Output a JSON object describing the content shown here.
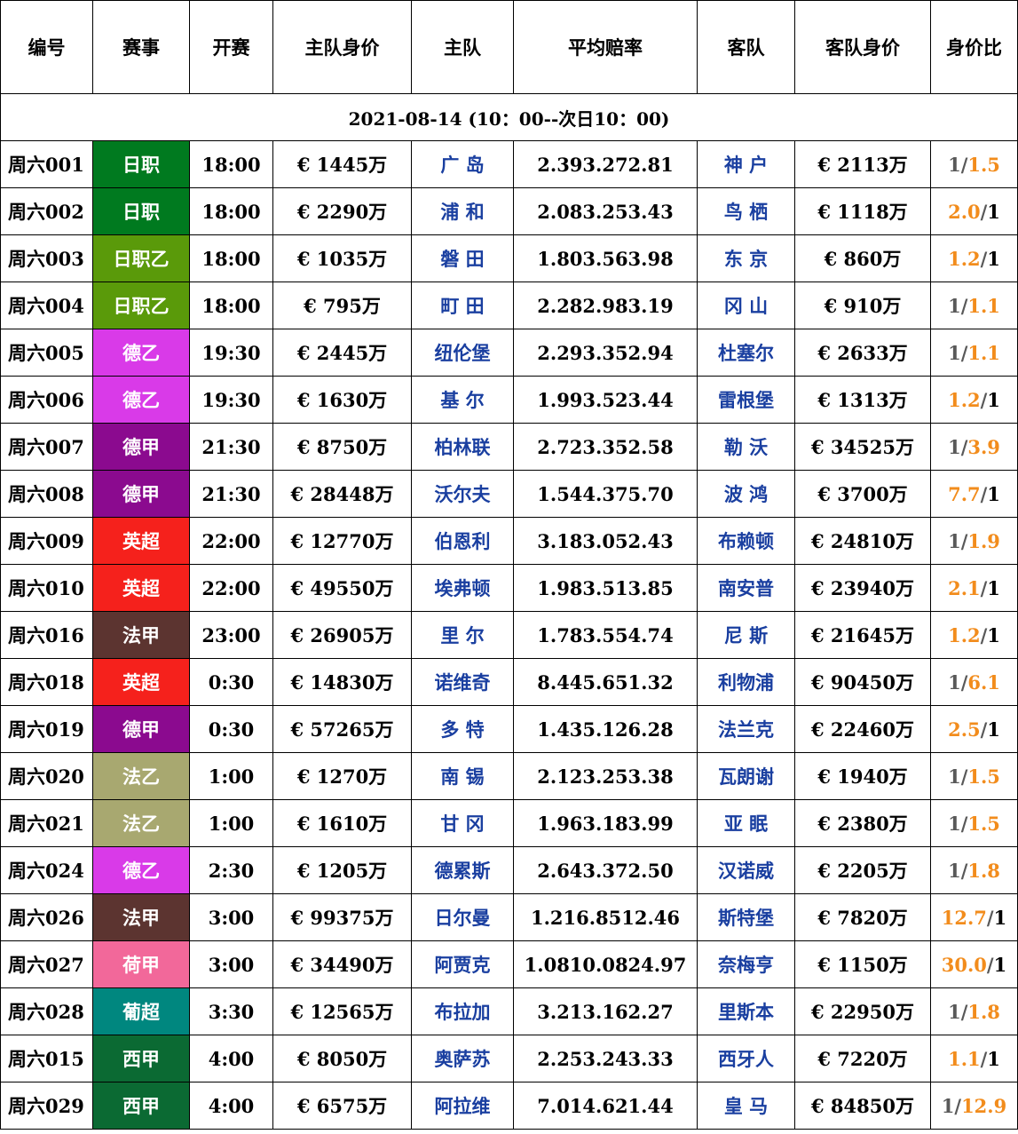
{
  "table": {
    "headers": [
      "编号",
      "赛事",
      "开赛",
      "主队身价",
      "主队",
      "平均赔率",
      "客队",
      "客队身价",
      "身价比"
    ],
    "date_label": "2021-08-14 (10：00--次日10：00)",
    "league_colors": {
      "日职": "#007a1f",
      "日职乙": "#5a9a0a",
      "德乙": "#d93ae8",
      "德甲": "#8b0a8f",
      "英超": "#f5211c",
      "法甲": "#5c3430",
      "法乙": "#a8a870",
      "荷甲": "#f2689a",
      "葡超": "#00877f",
      "西甲": "#0b6a33"
    },
    "rows": [
      {
        "id": "周六001",
        "league": "日职",
        "time": "18:00",
        "home_value": "€ 1445万",
        "home": "广 岛",
        "odds": "2.393.272.81",
        "away": "神 户",
        "away_value": "€ 2113万",
        "ratio_left": "1",
        "ratio_right": "1.5",
        "ratio_high": "right"
      },
      {
        "id": "周六002",
        "league": "日职",
        "time": "18:00",
        "home_value": "€ 2290万",
        "home": "浦 和",
        "odds": "2.083.253.43",
        "away": "鸟 栖",
        "away_value": "€ 1118万",
        "ratio_left": "2.0",
        "ratio_right": "1",
        "ratio_high": "left"
      },
      {
        "id": "周六003",
        "league": "日职乙",
        "time": "18:00",
        "home_value": "€ 1035万",
        "home": "磐 田",
        "odds": "1.803.563.98",
        "away": "东 京",
        "away_value": "€ 860万",
        "ratio_left": "1.2",
        "ratio_right": "1",
        "ratio_high": "left"
      },
      {
        "id": "周六004",
        "league": "日职乙",
        "time": "18:00",
        "home_value": "€ 795万",
        "home": "町 田",
        "odds": "2.282.983.19",
        "away": "冈 山",
        "away_value": "€ 910万",
        "ratio_left": "1",
        "ratio_right": "1.1",
        "ratio_high": "right"
      },
      {
        "id": "周六005",
        "league": "德乙",
        "time": "19:30",
        "home_value": "€ 2445万",
        "home": "纽伦堡",
        "odds": "2.293.352.94",
        "away": "杜塞尔",
        "away_value": "€ 2633万",
        "ratio_left": "1",
        "ratio_right": "1.1",
        "ratio_high": "right"
      },
      {
        "id": "周六006",
        "league": "德乙",
        "time": "19:30",
        "home_value": "€ 1630万",
        "home": "基 尔",
        "odds": "1.993.523.44",
        "away": "雷根堡",
        "away_value": "€ 1313万",
        "ratio_left": "1.2",
        "ratio_right": "1",
        "ratio_high": "left"
      },
      {
        "id": "周六007",
        "league": "德甲",
        "time": "21:30",
        "home_value": "€ 8750万",
        "home": "柏林联",
        "odds": "2.723.352.58",
        "away": "勒 沃",
        "away_value": "€ 34525万",
        "ratio_left": "1",
        "ratio_right": "3.9",
        "ratio_high": "right"
      },
      {
        "id": "周六008",
        "league": "德甲",
        "time": "21:30",
        "home_value": "€ 28448万",
        "home": "沃尔夫",
        "odds": "1.544.375.70",
        "away": "波 鸿",
        "away_value": "€ 3700万",
        "ratio_left": "7.7",
        "ratio_right": "1",
        "ratio_high": "left"
      },
      {
        "id": "周六009",
        "league": "英超",
        "time": "22:00",
        "home_value": "€ 12770万",
        "home": "伯恩利",
        "odds": "3.183.052.43",
        "away": "布赖顿",
        "away_value": "€ 24810万",
        "ratio_left": "1",
        "ratio_right": "1.9",
        "ratio_high": "right"
      },
      {
        "id": "周六010",
        "league": "英超",
        "time": "22:00",
        "home_value": "€ 49550万",
        "home": "埃弗顿",
        "odds": "1.983.513.85",
        "away": "南安普",
        "away_value": "€ 23940万",
        "ratio_left": "2.1",
        "ratio_right": "1",
        "ratio_high": "left"
      },
      {
        "id": "周六016",
        "league": "法甲",
        "time": "23:00",
        "home_value": "€ 26905万",
        "home": "里 尔",
        "odds": "1.783.554.74",
        "away": "尼 斯",
        "away_value": "€ 21645万",
        "ratio_left": "1.2",
        "ratio_right": "1",
        "ratio_high": "left"
      },
      {
        "id": "周六018",
        "league": "英超",
        "time": "0:30",
        "home_value": "€ 14830万",
        "home": "诺维奇",
        "odds": "8.445.651.32",
        "away": "利物浦",
        "away_value": "€ 90450万",
        "ratio_left": "1",
        "ratio_right": "6.1",
        "ratio_high": "right"
      },
      {
        "id": "周六019",
        "league": "德甲",
        "time": "0:30",
        "home_value": "€ 57265万",
        "home": "多 特",
        "odds": "1.435.126.28",
        "away": "法兰克",
        "away_value": "€ 22460万",
        "ratio_left": "2.5",
        "ratio_right": "1",
        "ratio_high": "left"
      },
      {
        "id": "周六020",
        "league": "法乙",
        "time": "1:00",
        "home_value": "€ 1270万",
        "home": "南 锡",
        "odds": "2.123.253.38",
        "away": "瓦朗谢",
        "away_value": "€ 1940万",
        "ratio_left": "1",
        "ratio_right": "1.5",
        "ratio_high": "right"
      },
      {
        "id": "周六021",
        "league": "法乙",
        "time": "1:00",
        "home_value": "€ 1610万",
        "home": "甘 冈",
        "odds": "1.963.183.99",
        "away": "亚 眠",
        "away_value": "€ 2380万",
        "ratio_left": "1",
        "ratio_right": "1.5",
        "ratio_high": "right"
      },
      {
        "id": "周六024",
        "league": "德乙",
        "time": "2:30",
        "home_value": "€ 1205万",
        "home": "德累斯",
        "odds": "2.643.372.50",
        "away": "汉诺威",
        "away_value": "€ 2205万",
        "ratio_left": "1",
        "ratio_right": "1.8",
        "ratio_high": "right"
      },
      {
        "id": "周六026",
        "league": "法甲",
        "time": "3:00",
        "home_value": "€ 99375万",
        "home": "日尔曼",
        "odds": "1.216.8512.46",
        "away": "斯特堡",
        "away_value": "€ 7820万",
        "ratio_left": "12.7",
        "ratio_right": "1",
        "ratio_high": "left"
      },
      {
        "id": "周六027",
        "league": "荷甲",
        "time": "3:00",
        "home_value": "€ 34490万",
        "home": "阿贾克",
        "odds": "1.0810.0824.97",
        "away": "奈梅亨",
        "away_value": "€ 1150万",
        "ratio_left": "30.0",
        "ratio_right": "1",
        "ratio_high": "left"
      },
      {
        "id": "周六028",
        "league": "葡超",
        "time": "3:30",
        "home_value": "€ 12565万",
        "home": "布拉加",
        "odds": "3.213.162.27",
        "away": "里斯本",
        "away_value": "€ 22950万",
        "ratio_left": "1",
        "ratio_right": "1.8",
        "ratio_high": "right"
      },
      {
        "id": "周六015",
        "league": "西甲",
        "time": "4:00",
        "home_value": "€ 8050万",
        "home": "奥萨苏",
        "odds": "2.253.243.33",
        "away": "西牙人",
        "away_value": "€ 7220万",
        "ratio_left": "1.1",
        "ratio_right": "1",
        "ratio_high": "left"
      },
      {
        "id": "周六029",
        "league": "西甲",
        "time": "4:00",
        "home_value": "€ 6575万",
        "home": "阿拉维",
        "odds": "7.014.621.44",
        "away": "皇 马",
        "away_value": "€ 84850万",
        "ratio_left": "1",
        "ratio_right": "12.9",
        "ratio_high": "right"
      }
    ]
  }
}
